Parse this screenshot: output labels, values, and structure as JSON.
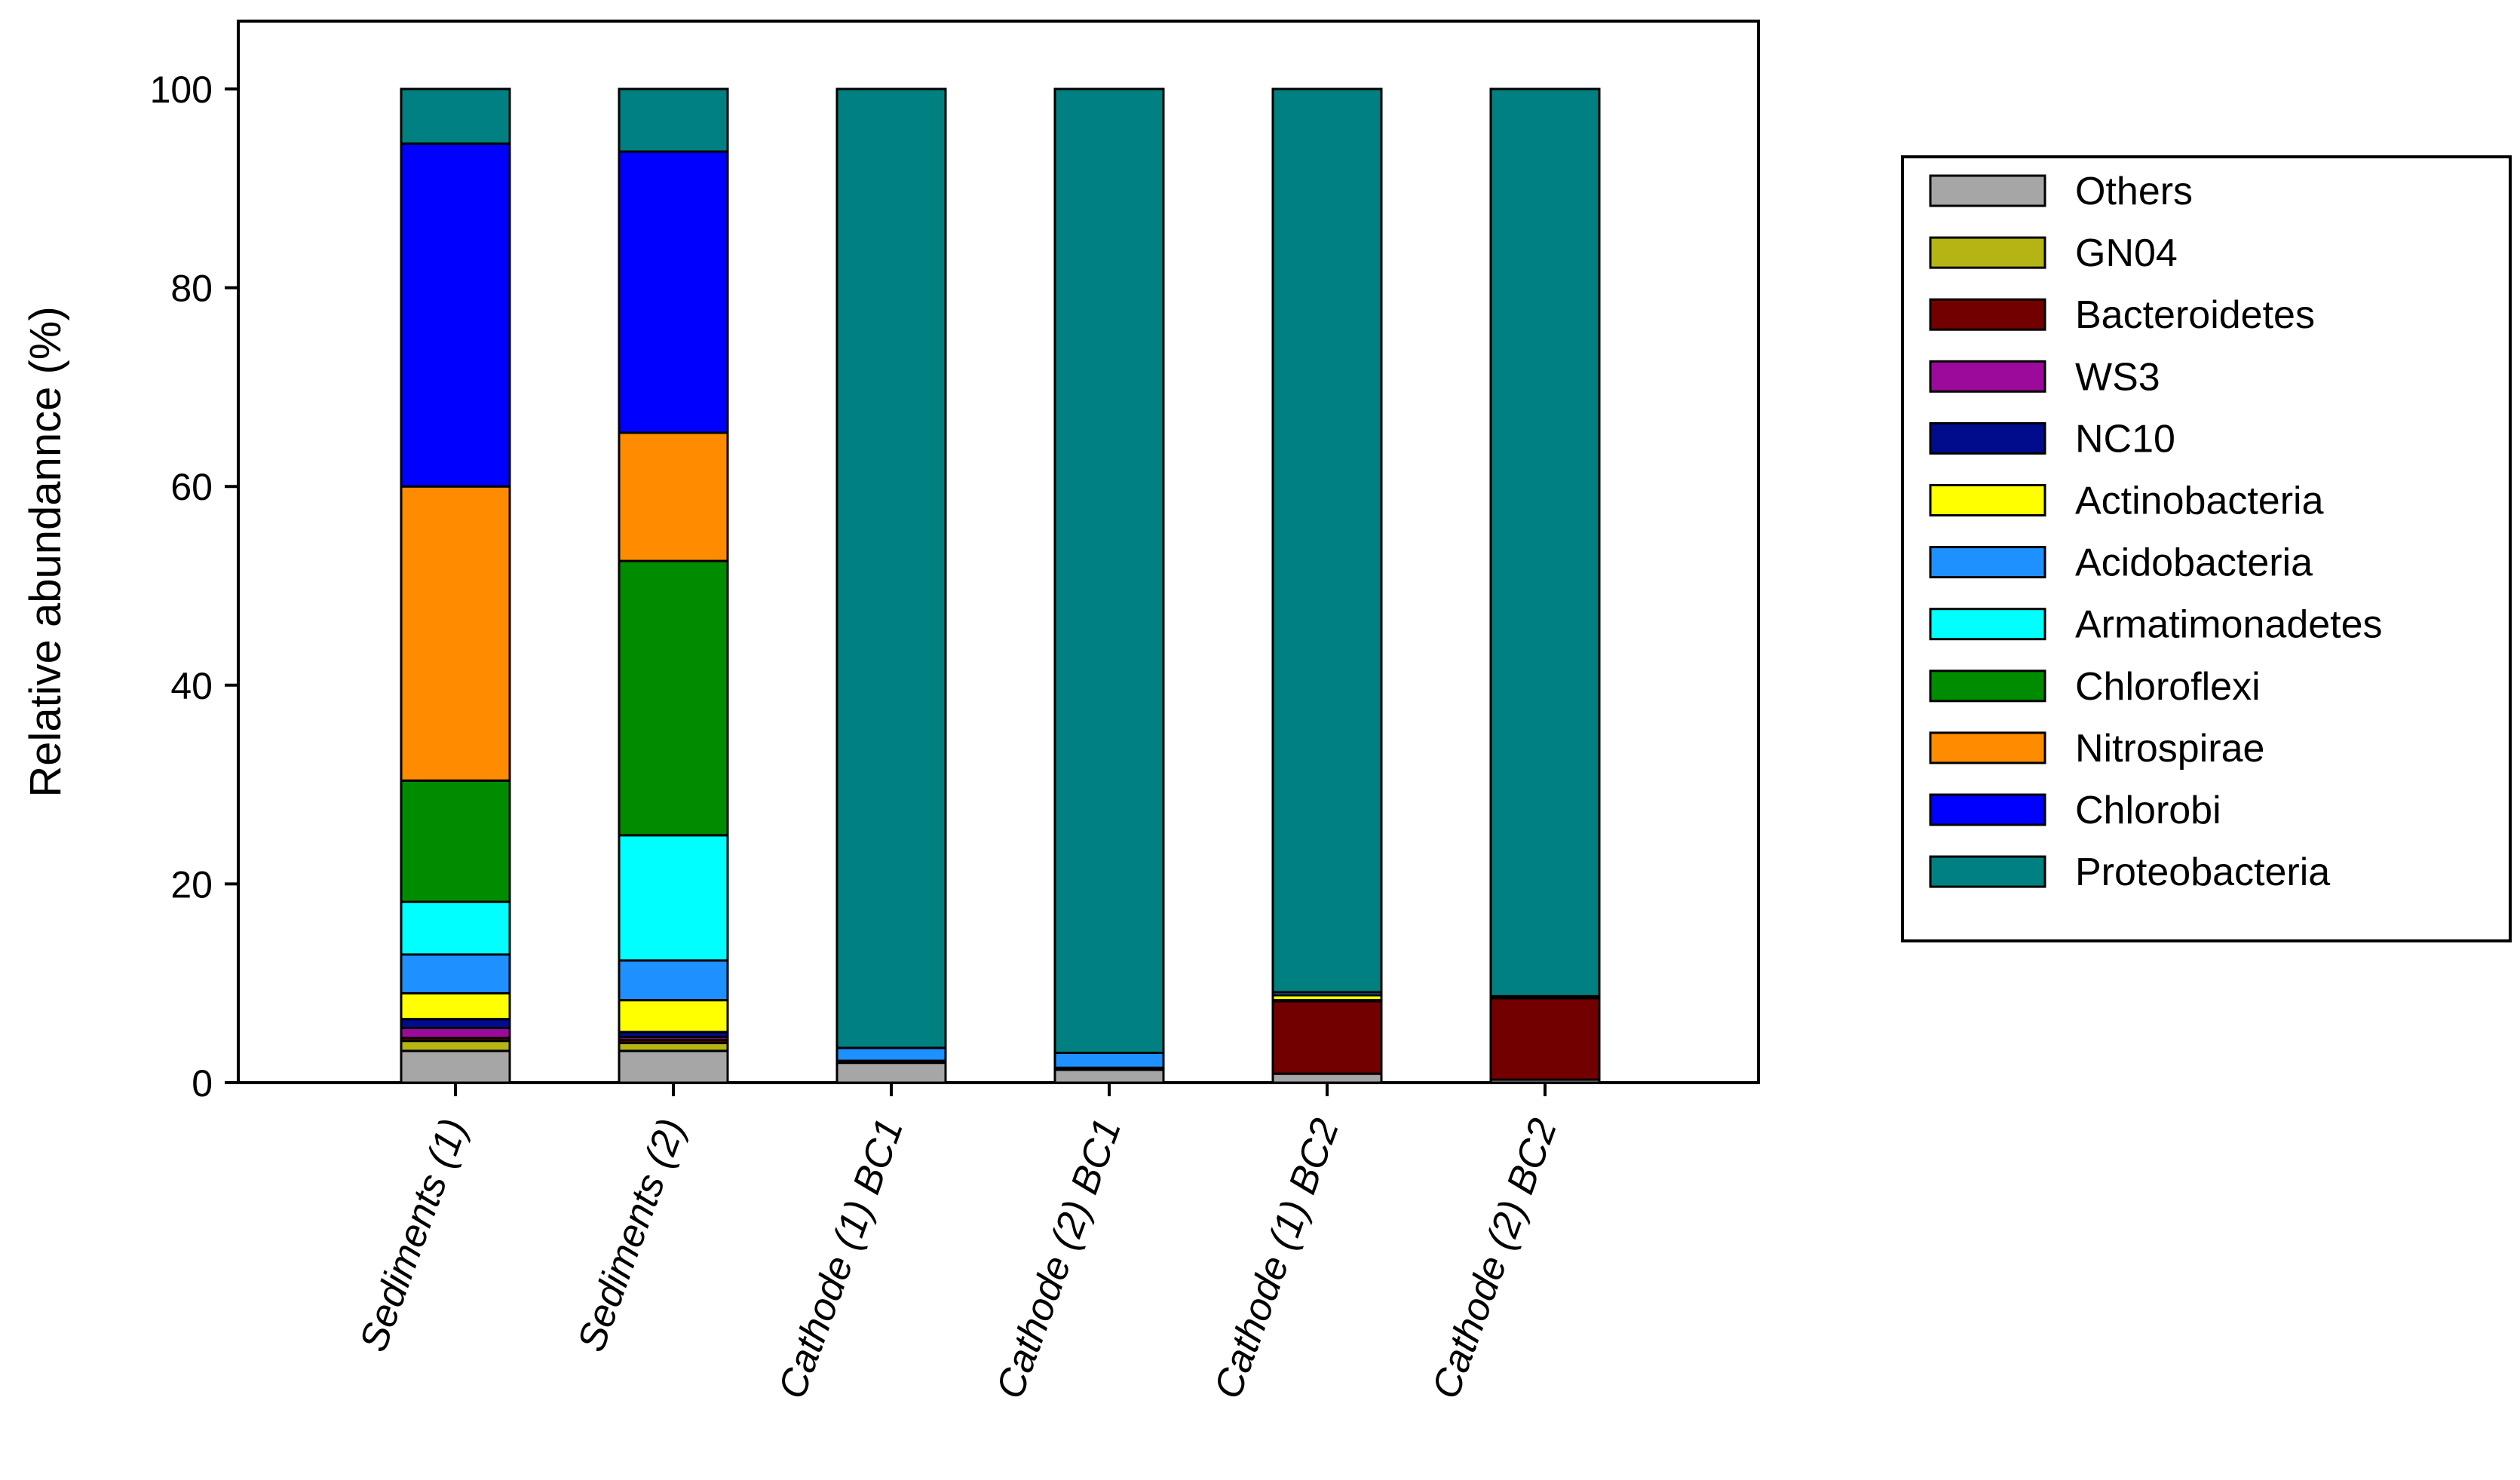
{
  "chart_data": {
    "type": "bar",
    "stacked": true,
    "title": "",
    "xlabel": "",
    "ylabel": "Relative abundannce (%)",
    "ylim": [
      0,
      100
    ],
    "yticks": [
      0,
      20,
      40,
      60,
      80,
      100
    ],
    "grid": false,
    "legend_position": "right",
    "categories": [
      "Sediments (1)",
      "Sediments (2)",
      "Cathode (1) BC1",
      "Cathode (2) BC1",
      "Cathode (1) BC2",
      "Cathode (2) BC2"
    ],
    "series": [
      {
        "name": "Others",
        "color": "#a6a6a6",
        "values": [
          3.2,
          3.2,
          2.0,
          1.3,
          0.9,
          0.3
        ]
      },
      {
        "name": "GN04",
        "color": "#b4b414",
        "values": [
          1.0,
          0.8,
          0.0,
          0.0,
          0.0,
          0.0
        ]
      },
      {
        "name": "Bacteroidetes",
        "color": "#730000",
        "values": [
          0.3,
          0.3,
          0.0,
          0.0,
          7.3,
          8.2
        ]
      },
      {
        "name": "WS3",
        "color": "#9c0a9c",
        "values": [
          1.0,
          0.3,
          0.0,
          0.0,
          0.0,
          0.0
        ]
      },
      {
        "name": "NC10",
        "color": "#000c8c",
        "values": [
          0.9,
          0.5,
          0.2,
          0.2,
          0.1,
          0.1
        ]
      },
      {
        "name": "Actinobacteria",
        "color": "#ffff00",
        "values": [
          2.6,
          3.2,
          0.0,
          0.0,
          0.5,
          0.0
        ]
      },
      {
        "name": "Acidobacteria",
        "color": "#1e90ff",
        "values": [
          3.9,
          4.0,
          1.3,
          1.5,
          0.3,
          0.1
        ]
      },
      {
        "name": "Armatimonadetes",
        "color": "#00ffff",
        "values": [
          5.3,
          12.6,
          0.0,
          0.0,
          0.0,
          0.0
        ]
      },
      {
        "name": "Chloroflexi",
        "color": "#008c00",
        "values": [
          12.2,
          27.6,
          0.0,
          0.0,
          0.0,
          0.0
        ]
      },
      {
        "name": "Nitrospirae",
        "color": "#ff8c00",
        "values": [
          29.6,
          12.9,
          0.0,
          0.0,
          0.0,
          0.0
        ]
      },
      {
        "name": "Chlorobi",
        "color": "#0000ff",
        "values": [
          34.5,
          28.3,
          0.0,
          0.0,
          0.0,
          0.0
        ]
      },
      {
        "name": "Proteobacteria",
        "color": "#008080",
        "values": [
          5.5,
          6.3,
          96.5,
          97.0,
          90.9,
          91.3
        ]
      }
    ]
  }
}
